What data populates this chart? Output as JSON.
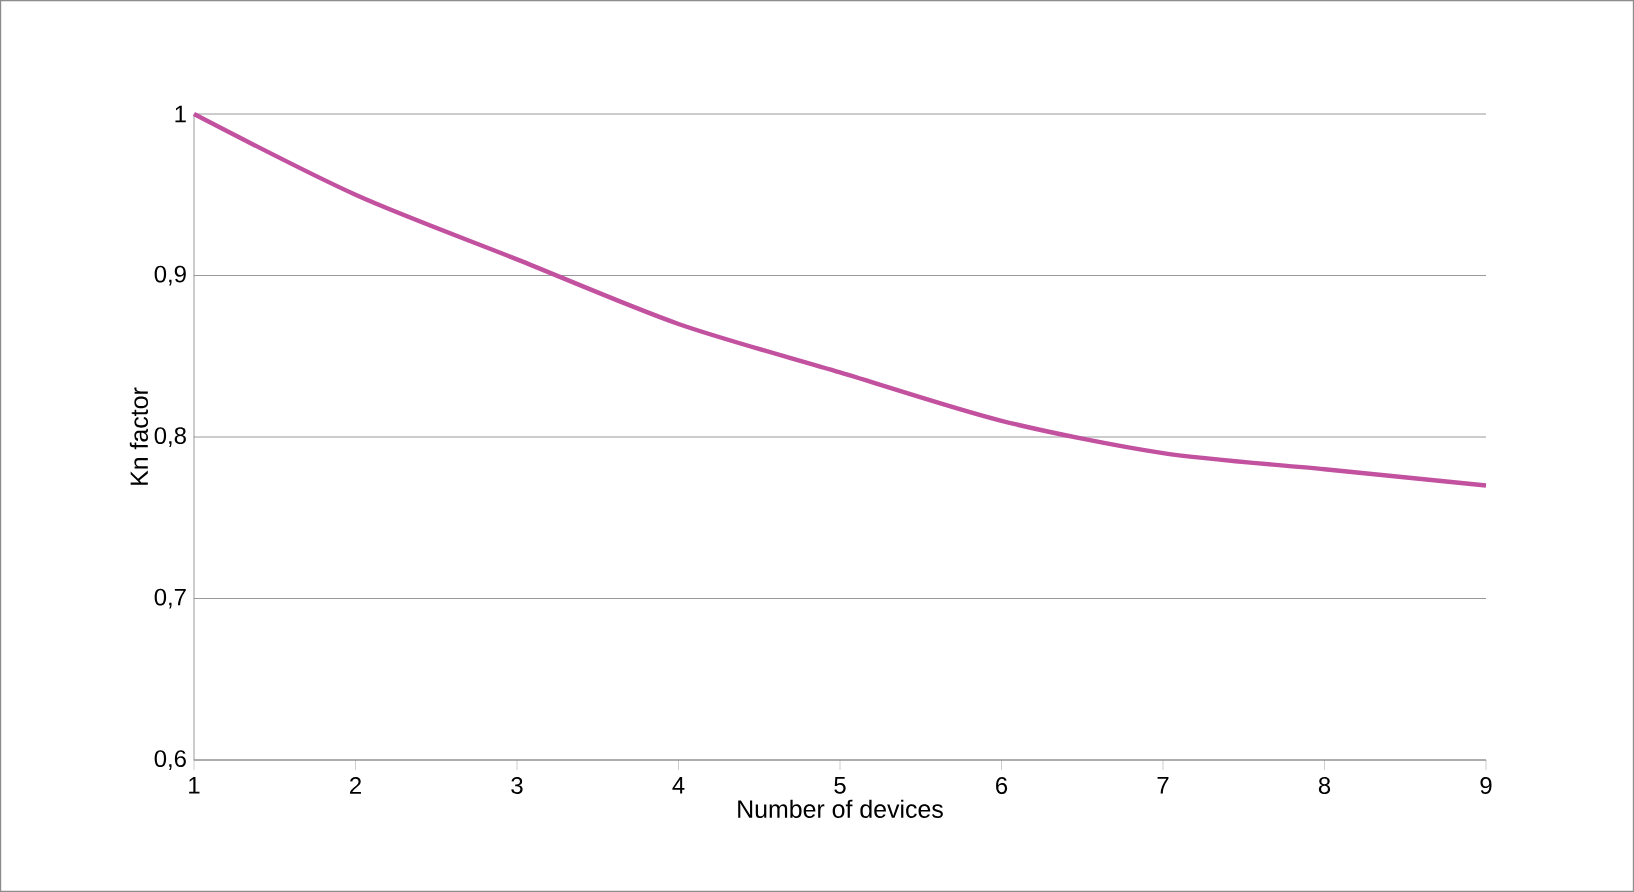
{
  "chart_data": {
    "type": "line",
    "xlabel": "Number of devices",
    "ylabel": "Kn factor",
    "x": [
      1,
      2,
      3,
      4,
      5,
      6,
      7,
      8,
      9
    ],
    "series": [
      {
        "color": "#c2519f",
        "values": [
          1,
          0.95,
          0.91,
          0.87,
          0.84,
          0.81,
          0.79,
          0.78,
          0.77
        ]
      }
    ],
    "xlim": [
      1,
      9
    ],
    "xticks": [
      1,
      2,
      3,
      4,
      5,
      6,
      7,
      8,
      9
    ],
    "ylim": [
      0.6,
      1
    ],
    "yticks": [
      {
        "value": 0.6,
        "label": "0,6"
      },
      {
        "value": 0.7,
        "label": "0,7"
      },
      {
        "value": 0.8,
        "label": "0,8"
      },
      {
        "value": 0.9,
        "label": "0,9"
      },
      {
        "value": 1,
        "label": "1"
      }
    ],
    "grid": "y",
    "line_style": "solid",
    "marker": "none"
  }
}
